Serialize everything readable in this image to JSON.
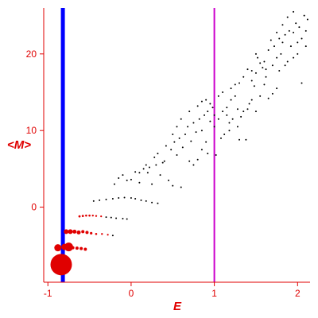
{
  "chart_data": {
    "type": "scatter",
    "xlabel": "E",
    "ylabel": "<M>",
    "xlim": [
      -1.05,
      2.15
    ],
    "ylim": [
      -9.8,
      26
    ],
    "xticks": [
      -1,
      0,
      1,
      2
    ],
    "yticks": [
      0,
      10,
      20
    ],
    "tick_labels_x": [
      "-1",
      "0",
      "1",
      "2"
    ],
    "tick_labels_y": [
      "0",
      "10",
      "20"
    ],
    "vertical_lines": [
      {
        "x": -0.82,
        "color": "#0000ff",
        "style": "thick"
      },
      {
        "x": 1.0,
        "color": "#cc00cc",
        "style": "thin"
      }
    ],
    "colors": {
      "axes": "#e00000",
      "small_points": "#000000",
      "large_points": "#e00000"
    },
    "series": [
      {
        "points": [
          [
            -0.84,
            -7.5
          ],
          [
            -0.75,
            -5.2
          ],
          [
            -0.7,
            -5.3
          ],
          [
            -0.65,
            -5.35
          ],
          [
            -0.6,
            -5.4
          ],
          [
            -0.55,
            -5.5
          ],
          [
            -0.88,
            -5.3
          ],
          [
            -0.8,
            -5.2
          ],
          [
            -0.78,
            -3.2
          ],
          [
            -0.73,
            -3.2
          ],
          [
            -0.68,
            -3.2
          ],
          [
            -0.63,
            -3.3
          ],
          [
            -0.58,
            -3.2
          ],
          [
            -0.53,
            -3.3
          ],
          [
            -0.48,
            -3.4
          ],
          [
            -0.42,
            -3.5
          ],
          [
            -0.35,
            -3.5
          ],
          [
            -0.28,
            -3.6
          ],
          [
            -0.22,
            -3.7
          ],
          [
            -0.62,
            -1.2
          ],
          [
            -0.58,
            -1.15
          ],
          [
            -0.54,
            -1.1
          ],
          [
            -0.5,
            -1.1
          ],
          [
            -0.46,
            -1.1
          ],
          [
            -0.42,
            -1.15
          ],
          [
            -0.36,
            -1.2
          ],
          [
            -0.3,
            -1.3
          ],
          [
            -0.24,
            -1.35
          ],
          [
            -0.18,
            -1.45
          ],
          [
            -0.1,
            -1.5
          ],
          [
            -0.05,
            -1.55
          ],
          [
            -0.45,
            0.8
          ],
          [
            -0.38,
            0.9
          ],
          [
            -0.3,
            1.0
          ],
          [
            -0.22,
            1.1
          ],
          [
            -0.15,
            1.2
          ],
          [
            -0.08,
            1.25
          ],
          [
            0.0,
            1.2
          ],
          [
            0.05,
            1.1
          ],
          [
            0.12,
            0.9
          ],
          [
            0.18,
            0.8
          ],
          [
            0.25,
            0.6
          ],
          [
            0.32,
            0.5
          ],
          [
            -0.2,
            3.0
          ],
          [
            -0.15,
            3.8
          ],
          [
            -0.1,
            4.2
          ],
          [
            -0.05,
            3.5
          ],
          [
            0.0,
            3.6
          ],
          [
            0.05,
            4.6
          ],
          [
            0.1,
            3.2
          ],
          [
            0.15,
            5.0
          ],
          [
            0.2,
            4.5
          ],
          [
            0.25,
            3.0
          ],
          [
            0.3,
            5.5
          ],
          [
            0.35,
            4.2
          ],
          [
            0.4,
            6.0
          ],
          [
            0.45,
            3.5
          ],
          [
            0.5,
            2.8
          ],
          [
            0.55,
            6.8
          ],
          [
            0.6,
            2.6
          ],
          [
            0.1,
            4.5
          ],
          [
            0.18,
            5.5
          ],
          [
            0.22,
            5.2
          ],
          [
            0.28,
            6.5
          ],
          [
            0.32,
            7.0
          ],
          [
            0.38,
            5.8
          ],
          [
            0.42,
            8.0
          ],
          [
            0.48,
            7.5
          ],
          [
            0.52,
            8.5
          ],
          [
            0.58,
            9.0
          ],
          [
            0.62,
            7.8
          ],
          [
            0.65,
            9.5
          ],
          [
            0.68,
            10.5
          ],
          [
            0.72,
            8.6
          ],
          [
            0.75,
            11.0
          ],
          [
            0.78,
            9.8
          ],
          [
            0.82,
            11.5
          ],
          [
            0.85,
            10.0
          ],
          [
            0.88,
            12.0
          ],
          [
            0.9,
            8.5
          ],
          [
            0.92,
            12.5
          ],
          [
            0.95,
            11.2
          ],
          [
            0.98,
            13.0
          ],
          [
            1.0,
            12.0
          ],
          [
            0.5,
            9.5
          ],
          [
            0.55,
            10.5
          ],
          [
            0.6,
            11.5
          ],
          [
            0.7,
            12.5
          ],
          [
            0.8,
            13.2
          ],
          [
            0.85,
            13.8
          ],
          [
            0.9,
            14.0
          ],
          [
            0.95,
            13.5
          ],
          [
            1.05,
            14.5
          ],
          [
            1.02,
            6.8
          ],
          [
            1.1,
            15.0
          ],
          [
            1.15,
            13.0
          ],
          [
            1.2,
            15.5
          ],
          [
            1.25,
            14.5
          ],
          [
            1.3,
            16.2
          ],
          [
            1.28,
            12.8
          ],
          [
            1.35,
            17.0
          ],
          [
            1.3,
            8.8
          ],
          [
            1.38,
            8.8
          ],
          [
            1.0,
            10.5
          ],
          [
            1.05,
            11.5
          ],
          [
            1.1,
            12.5
          ],
          [
            1.15,
            12.0
          ],
          [
            1.2,
            14.0
          ],
          [
            1.25,
            16.0
          ],
          [
            1.4,
            18.0
          ],
          [
            1.45,
            16.5
          ],
          [
            1.5,
            17.5
          ],
          [
            1.55,
            18.8
          ],
          [
            1.5,
            20.0
          ],
          [
            1.6,
            19.0
          ],
          [
            1.62,
            17.0
          ],
          [
            1.65,
            20.5
          ],
          [
            1.7,
            18.5
          ],
          [
            1.72,
            21.0
          ],
          [
            1.75,
            19.5
          ],
          [
            1.78,
            22.0
          ],
          [
            1.8,
            20.0
          ],
          [
            1.82,
            21.5
          ],
          [
            1.85,
            22.5
          ],
          [
            1.88,
            19.0
          ],
          [
            1.9,
            23.0
          ],
          [
            1.92,
            21.0
          ],
          [
            1.95,
            22.8
          ],
          [
            1.98,
            24.0
          ],
          [
            2.0,
            20.0
          ],
          [
            2.02,
            23.5
          ],
          [
            2.05,
            22.0
          ],
          [
            2.08,
            25.0
          ],
          [
            2.1,
            23.0
          ],
          [
            2.12,
            24.5
          ],
          [
            2.05,
            16.2
          ],
          [
            1.7,
            14.8
          ],
          [
            1.75,
            15.5
          ],
          [
            1.45,
            14.0
          ],
          [
            1.5,
            12.5
          ],
          [
            1.55,
            14.5
          ],
          [
            1.6,
            16.0
          ],
          [
            1.65,
            14.2
          ],
          [
            1.58,
            18.2
          ],
          [
            1.48,
            15.8
          ],
          [
            1.42,
            13.5
          ],
          [
            1.35,
            12.5
          ],
          [
            1.22,
            11.5
          ],
          [
            1.18,
            10.0
          ],
          [
            1.12,
            9.5
          ],
          [
            0.7,
            6.0
          ],
          [
            0.75,
            5.5
          ],
          [
            0.8,
            6.2
          ],
          [
            0.85,
            7.5
          ],
          [
            0.92,
            7.0
          ],
          [
            1.08,
            9.0
          ],
          [
            1.18,
            11.0
          ],
          [
            1.28,
            10.5
          ],
          [
            1.32,
            11.8
          ],
          [
            1.4,
            12.8
          ],
          [
            1.45,
            17.8
          ],
          [
            1.52,
            19.5
          ],
          [
            1.62,
            18.0
          ],
          [
            1.68,
            21.8
          ],
          [
            1.75,
            22.8
          ],
          [
            1.82,
            23.8
          ],
          [
            1.88,
            24.8
          ],
          [
            1.95,
            25.5
          ],
          [
            2.0,
            21.5
          ],
          [
            2.1,
            21.0
          ],
          [
            1.95,
            19.5
          ],
          [
            1.85,
            18.5
          ],
          [
            1.78,
            17.8
          ]
        ],
        "marker_sizes": [
          13.5,
          5.5,
          2,
          2,
          2,
          2,
          4.5,
          4,
          3,
          3,
          2.5,
          2.5,
          2,
          2,
          1.6,
          1.3,
          1.2,
          1.1,
          1,
          1.4,
          1.4,
          1.3,
          1.3,
          1.2,
          1.2,
          1.1,
          1,
          1,
          1,
          1,
          1,
          1,
          1,
          1,
          1,
          1,
          1,
          1,
          1,
          1,
          1,
          1,
          1,
          1,
          1,
          1,
          1,
          1,
          1,
          1,
          1,
          1,
          1,
          1,
          1,
          1,
          1,
          1,
          1,
          1,
          1,
          1,
          1,
          1,
          1,
          1,
          1,
          1,
          1,
          1,
          1,
          1,
          1,
          1,
          1,
          1,
          1,
          1,
          1,
          1,
          1,
          1,
          1,
          1,
          1,
          1,
          1,
          1,
          1,
          1,
          1,
          1,
          1,
          1,
          1,
          1,
          1,
          1,
          1,
          1,
          1,
          1,
          1,
          1,
          1,
          1,
          1,
          1,
          1,
          1,
          1,
          1,
          1,
          1,
          1,
          1,
          1,
          1,
          1,
          1,
          1,
          1,
          1,
          1,
          1,
          1,
          1,
          1,
          1,
          1,
          1,
          1,
          1,
          1,
          1,
          1,
          1,
          1,
          1,
          1,
          1,
          1,
          1,
          1,
          1,
          1,
          1,
          1,
          1,
          1,
          1,
          1,
          1,
          1,
          1,
          1,
          1,
          1,
          1,
          1,
          1,
          1,
          1,
          1,
          1,
          1,
          1,
          1,
          1,
          1,
          1,
          1,
          1
        ]
      }
    ]
  }
}
